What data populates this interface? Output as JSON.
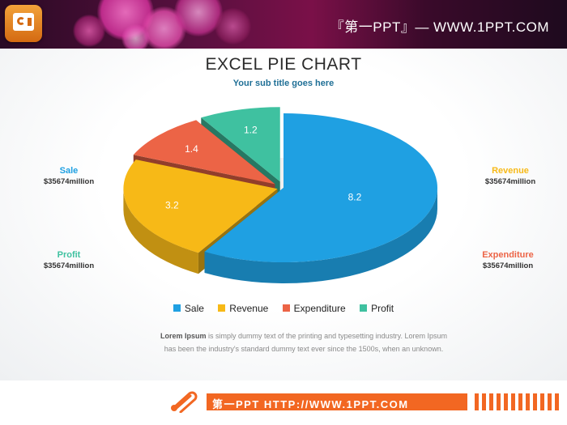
{
  "header": {
    "site_title": "『第一PPT』— WWW.1PPT.COM",
    "logo_icon": "powerpoint-logo-icon"
  },
  "chart_data": {
    "type": "pie",
    "title": "EXCEL PIE CHART",
    "subtitle": "Your sub title goes here",
    "labels": [
      "Sale",
      "Revenue",
      "Expenditure",
      "Profit"
    ],
    "values": [
      8.2,
      3.2,
      1.4,
      1.2
    ],
    "colors": [
      "#1fa0e2",
      "#f7b917",
      "#ec6446",
      "#3fc1a0"
    ],
    "data_labels": [
      "8.2",
      "3.2",
      "1.4",
      "1.2"
    ],
    "legend_position": "bottom",
    "style": "3d-exploded"
  },
  "side_labels": [
    {
      "name": "Sale",
      "value": "$35674million",
      "color": "#1fa0e2"
    },
    {
      "name": "Revenue",
      "value": "$35674million",
      "color": "#f7b917"
    },
    {
      "name": "Profit",
      "value": "$35674million",
      "color": "#3fc1a0"
    },
    {
      "name": "Expenditure",
      "value": "$35674million",
      "color": "#ec6446"
    }
  ],
  "description": {
    "bold": "Lorem Ipsum",
    "text": " is simply dummy text of the printing and typesetting industry. Lorem Ipsum has been the industry's standard dummy text ever since the 1500s, when an unknown."
  },
  "footer": {
    "text": "第一PPT HTTP://WWW.1PPT.COM",
    "icon": "paperclip-icon"
  }
}
